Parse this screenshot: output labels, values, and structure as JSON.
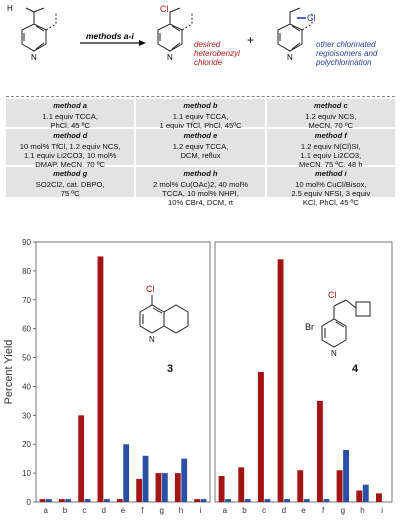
{
  "scheme": {
    "arrow_label": "methods a-i",
    "label_cl_left": "Cl",
    "label_cl_right": "Cl",
    "label_h": "H",
    "label_n_start": "N",
    "label_n_product": "N",
    "label_n_side": "N",
    "plus": "+",
    "desired_product": "desired\nheterobenzyl\nchloride",
    "other_products": "other chlorinated\nregioisomers and\npolychlorination",
    "colors": {
      "desired": "#b01818",
      "other": "#2840a0"
    }
  },
  "methods": [
    {
      "name": "method a",
      "conditions": "1.1 equiv TCCA,\nPhCl, 45 ºC"
    },
    {
      "name": "method b",
      "conditions": "1.1 equiv TCCA,\n1 equiv TfCl, PhCl, 45ºC"
    },
    {
      "name": "method c",
      "conditions": "1.2 equiv NCS,\nMeCN, 70 ºC"
    },
    {
      "name": "method d",
      "conditions": "10 mol% TfCl, 1.2 equiv NCS,\n1.1 equiv Li2CO3, 10 mol%\nDMAP, MeCN, 70 ºC"
    },
    {
      "name": "method e",
      "conditions": "1.2 equiv TCCA,\nDCM, reflux"
    },
    {
      "name": "method f",
      "conditions": "1.2 equiv N(Cl)SI,\n1.1 equiv Li2CO3,\nMeCN, 75 ºC, 48 h"
    },
    {
      "name": "method g",
      "conditions": "SO2Cl2, cat. DBPO,\n75 ºC"
    },
    {
      "name": "method h",
      "conditions": "2 mol% Cu(OAc)2, 40 mol%\nTCCA, 10 mol% NHPI,\n10% CBr4, DCM, rt"
    },
    {
      "name": "method i",
      "conditions": "10 mol% CuCl/Bisox,\n2.5 equiv NFSI, 3 equiv\nKCl, PhCl, 45 ºC"
    }
  ],
  "chart_data": [
    {
      "type": "bar",
      "ylabel": "Percent Yield",
      "ylim": [
        0,
        90
      ],
      "yticks": [
        0,
        10,
        20,
        30,
        40,
        50,
        60,
        70,
        80,
        90
      ],
      "categories": [
        "a",
        "b",
        "c",
        "d",
        "e",
        "f",
        "g",
        "h",
        "i"
      ],
      "compound_label": "3",
      "structure_atoms": {
        "cl": "Cl",
        "n": "N"
      },
      "series": [
        {
          "color": "#a31515",
          "values": [
            1,
            1,
            30,
            85,
            1,
            8,
            10,
            10,
            1
          ]
        },
        {
          "color": "#2a4fa3",
          "values": [
            1,
            1,
            1,
            1,
            20,
            16,
            10,
            15,
            1
          ]
        }
      ]
    },
    {
      "type": "bar",
      "ylim": [
        0,
        90
      ],
      "categories": [
        "a",
        "b",
        "c",
        "d",
        "e",
        "f",
        "g",
        "h",
        "i"
      ],
      "compound_label": "4",
      "structure_atoms": {
        "cl": "Cl",
        "br": "Br",
        "n": "N"
      },
      "series": [
        {
          "color": "#a31515",
          "values": [
            9,
            12,
            45,
            84,
            11,
            35,
            11,
            4,
            3
          ]
        },
        {
          "color": "#2a4fa3",
          "values": [
            1,
            1,
            1,
            1,
            1,
            1,
            18,
            6,
            0
          ]
        }
      ]
    }
  ]
}
